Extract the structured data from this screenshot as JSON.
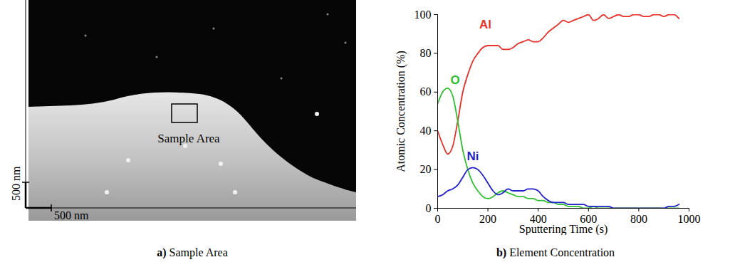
{
  "image_panel": {
    "box_label": "Sample Area",
    "scale_bar_x": "500 nm",
    "scale_bar_y": "500 nm",
    "caption": "a) Sample Area"
  },
  "chart_data": {
    "type": "line",
    "caption": "b) Element Concentration",
    "x_label": "Sputtering Time (s)",
    "y_label": "Atomic Concentration (%)",
    "x": [
      0,
      20,
      40,
      60,
      80,
      100,
      120,
      140,
      160,
      180,
      200,
      220,
      240,
      260,
      280,
      300,
      320,
      340,
      360,
      380,
      400,
      420,
      440,
      460,
      480,
      500,
      520,
      540,
      560,
      580,
      600,
      620,
      640,
      660,
      680,
      700,
      720,
      740,
      760,
      780,
      800,
      820,
      840,
      860,
      880,
      900,
      920,
      940,
      960
    ],
    "series": [
      {
        "name": "Al",
        "color": "#e8302a",
        "values": [
          40,
          33,
          28,
          32,
          45,
          60,
          69,
          76,
          80,
          83,
          84,
          84,
          84,
          82,
          82,
          83,
          85,
          86,
          87,
          86,
          86,
          88,
          91,
          93,
          95,
          97,
          96,
          97,
          98,
          99,
          100,
          97,
          98,
          100,
          98,
          99,
          100,
          99,
          99,
          100,
          100,
          99,
          99,
          100,
          100,
          99,
          100,
          100,
          98
        ]
      },
      {
        "name": "O",
        "color": "#2ec02e",
        "values": [
          54,
          60,
          62,
          58,
          45,
          30,
          20,
          13,
          9,
          6,
          5,
          6,
          8,
          9,
          8,
          7,
          6,
          6,
          5,
          5,
          4,
          4,
          3,
          3,
          2,
          2,
          1,
          1,
          1,
          0,
          0,
          1,
          0,
          0,
          0,
          0,
          0,
          0,
          0,
          0,
          0,
          0,
          0,
          0,
          0,
          0,
          0,
          0,
          0
        ]
      },
      {
        "name": "Ni",
        "color": "#1f1fcc",
        "values": [
          6,
          7,
          9,
          10,
          12,
          16,
          20,
          21,
          20,
          17,
          13,
          9,
          7,
          8,
          10,
          9,
          9,
          9,
          10,
          10,
          9,
          6,
          4,
          3,
          3,
          3,
          2,
          2,
          2,
          2,
          1,
          1,
          1,
          1,
          1,
          0,
          0,
          0,
          0,
          0,
          0,
          0,
          0,
          0,
          0,
          0,
          1,
          1,
          2
        ]
      }
    ],
    "xlim": [
      0,
      1000
    ],
    "ylim": [
      0,
      100
    ],
    "xticks": [
      0,
      200,
      400,
      600,
      800,
      1000
    ],
    "yticks": [
      0,
      20,
      40,
      60,
      80,
      100
    ],
    "grid": false
  }
}
